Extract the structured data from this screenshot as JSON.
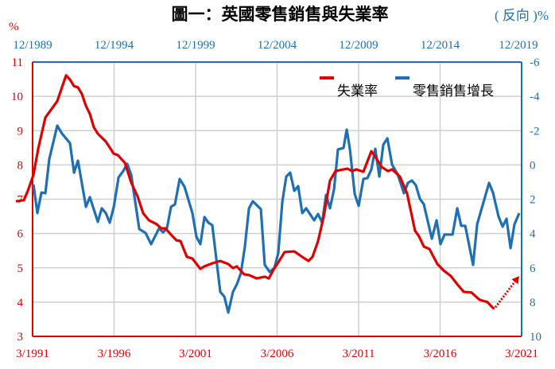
{
  "chart_data": {
    "type": "line",
    "title": "圖一：英國零售銷售與失業率",
    "left_axis": {
      "unit_label": "%",
      "range": [
        3,
        11
      ],
      "ticks": [
        "3",
        "4",
        "5",
        "6",
        "7",
        "8",
        "9",
        "10",
        "11"
      ],
      "color": "#e00000"
    },
    "right_axis": {
      "unit_label": "( 反向 )%",
      "range": [
        -6,
        10
      ],
      "reversed": true,
      "ticks": [
        "-6",
        "-4",
        "-2",
        "0",
        "2",
        "4",
        "6",
        "8",
        "10"
      ],
      "color": "#1f6fb4"
    },
    "bottom_axis": {
      "range": [
        1991.167,
        2021.167
      ],
      "ticks": [
        "3/1991",
        "3/1996",
        "3/2001",
        "3/2006",
        "3/2011",
        "3/2016",
        "3/2021"
      ],
      "color": "#e00000"
    },
    "top_axis": {
      "range": [
        1989.917,
        2019.917
      ],
      "ticks": [
        "12/1989",
        "12/1994",
        "12/1999",
        "12/2004",
        "12/2009",
        "12/2014",
        "12/2019"
      ],
      "color": "#1f6fb4"
    },
    "grid": true,
    "legend_position": "top-right",
    "series": [
      {
        "name": "失業率",
        "color": "#e00000",
        "axis": "left/bottom",
        "points": [
          [
            1990.14,
            6.94
          ],
          [
            1990.63,
            6.97
          ],
          [
            1990.87,
            7.24
          ],
          [
            1991.22,
            7.71
          ],
          [
            1991.51,
            8.47
          ],
          [
            1991.95,
            9.38
          ],
          [
            1992.68,
            9.86
          ],
          [
            1993.22,
            10.61
          ],
          [
            1993.46,
            10.49
          ],
          [
            1993.7,
            10.3
          ],
          [
            1993.95,
            10.26
          ],
          [
            1994.19,
            10.07
          ],
          [
            1994.44,
            9.72
          ],
          [
            1994.68,
            9.49
          ],
          [
            1994.92,
            9.1
          ],
          [
            1995.17,
            8.91
          ],
          [
            1995.66,
            8.68
          ],
          [
            1996.14,
            8.33
          ],
          [
            1996.39,
            8.29
          ],
          [
            1996.83,
            8.06
          ],
          [
            1997.22,
            7.48
          ],
          [
            1997.61,
            7.08
          ],
          [
            1997.95,
            6.59
          ],
          [
            1998.29,
            6.39
          ],
          [
            1998.78,
            6.27
          ],
          [
            1999.07,
            6.15
          ],
          [
            1999.31,
            6.15
          ],
          [
            1999.75,
            5.92
          ],
          [
            2000.0,
            5.8
          ],
          [
            2000.24,
            5.78
          ],
          [
            2000.63,
            5.32
          ],
          [
            2000.97,
            5.27
          ],
          [
            2001.46,
            4.97
          ],
          [
            2001.7,
            5.04
          ],
          [
            2002.19,
            5.13
          ],
          [
            2002.68,
            5.2
          ],
          [
            2003.17,
            5.11
          ],
          [
            2003.46,
            4.99
          ],
          [
            2003.7,
            5.04
          ],
          [
            2004.14,
            4.81
          ],
          [
            2004.44,
            4.79
          ],
          [
            2004.92,
            4.69
          ],
          [
            2005.41,
            4.74
          ],
          [
            2005.66,
            4.69
          ],
          [
            2006.0,
            4.99
          ],
          [
            2006.24,
            5.16
          ],
          [
            2006.63,
            5.46
          ],
          [
            2007.22,
            5.48
          ],
          [
            2007.7,
            5.32
          ],
          [
            2008.09,
            5.2
          ],
          [
            2008.34,
            5.32
          ],
          [
            2008.68,
            5.78
          ],
          [
            2009.02,
            6.48
          ],
          [
            2009.41,
            7.54
          ],
          [
            2009.75,
            7.82
          ],
          [
            2010.04,
            7.85
          ],
          [
            2010.48,
            7.89
          ],
          [
            2010.78,
            7.82
          ],
          [
            2011.02,
            7.87
          ],
          [
            2011.46,
            7.8
          ],
          [
            2011.95,
            8.4
          ],
          [
            2012.19,
            8.24
          ],
          [
            2012.58,
            7.94
          ],
          [
            2012.97,
            7.82
          ],
          [
            2013.22,
            7.87
          ],
          [
            2013.7,
            7.66
          ],
          [
            2014.14,
            7.17
          ],
          [
            2014.63,
            6.08
          ],
          [
            2014.87,
            5.92
          ],
          [
            2015.17,
            5.62
          ],
          [
            2015.51,
            5.55
          ],
          [
            2016.0,
            5.11
          ],
          [
            2016.39,
            4.92
          ],
          [
            2016.83,
            4.76
          ],
          [
            2017.12,
            4.58
          ],
          [
            2017.61,
            4.3
          ],
          [
            2018.09,
            4.28
          ],
          [
            2018.58,
            4.07
          ],
          [
            2019.07,
            4.0
          ],
          [
            2019.41,
            3.83
          ],
          [
            2019.51,
            3.81
          ]
        ],
        "projection_arrow": [
          [
            2019.56,
            3.85
          ],
          [
            2021.02,
            4.76
          ]
        ]
      },
      {
        "name": "零售銷售增長",
        "color": "#1f6fb4",
        "axis": "right/top",
        "points": [
          [
            1989.97,
            1.14
          ],
          [
            1990.21,
            2.81
          ],
          [
            1990.46,
            1.61
          ],
          [
            1990.7,
            1.65
          ],
          [
            1990.94,
            -0.34
          ],
          [
            1991.43,
            -2.29
          ],
          [
            1991.72,
            -1.83
          ],
          [
            1992.21,
            -1.27
          ],
          [
            1992.46,
            0.45
          ],
          [
            1992.7,
            -0.25
          ],
          [
            1993.19,
            2.44
          ],
          [
            1993.43,
            1.88
          ],
          [
            1993.92,
            3.32
          ],
          [
            1994.16,
            2.53
          ],
          [
            1994.41,
            2.81
          ],
          [
            1994.65,
            3.37
          ],
          [
            1994.9,
            2.44
          ],
          [
            1995.19,
            0.73
          ],
          [
            1995.48,
            0.35
          ],
          [
            1995.72,
            -0.06
          ],
          [
            1995.97,
            0.59
          ],
          [
            1996.46,
            3.74
          ],
          [
            1996.85,
            3.97
          ],
          [
            1997.19,
            4.62
          ],
          [
            1997.68,
            3.69
          ],
          [
            1997.92,
            3.93
          ],
          [
            1998.16,
            3.69
          ],
          [
            1998.41,
            2.44
          ],
          [
            1998.65,
            2.3
          ],
          [
            1998.94,
            0.82
          ],
          [
            1999.24,
            1.28
          ],
          [
            1999.72,
            2.81
          ],
          [
            1999.97,
            4.2
          ],
          [
            2000.21,
            4.62
          ],
          [
            2000.46,
            3.04
          ],
          [
            2000.7,
            3.37
          ],
          [
            2000.94,
            3.51
          ],
          [
            2001.43,
            7.4
          ],
          [
            2001.68,
            7.68
          ],
          [
            2001.92,
            8.61
          ],
          [
            2002.21,
            7.4
          ],
          [
            2002.46,
            6.94
          ],
          [
            2002.7,
            6.29
          ],
          [
            2002.94,
            4.76
          ],
          [
            2003.19,
            2.53
          ],
          [
            2003.43,
            2.12
          ],
          [
            2003.92,
            2.58
          ],
          [
            2004.16,
            5.83
          ],
          [
            2004.46,
            6.24
          ],
          [
            2004.75,
            6.01
          ],
          [
            2004.99,
            5.13
          ],
          [
            2005.24,
            2.12
          ],
          [
            2005.48,
            0.68
          ],
          [
            2005.72,
            0.45
          ],
          [
            2005.97,
            1.51
          ],
          [
            2006.21,
            1.24
          ],
          [
            2006.46,
            2.81
          ],
          [
            2006.7,
            2.53
          ],
          [
            2007.19,
            3.23
          ],
          [
            2007.43,
            2.86
          ],
          [
            2007.68,
            3.37
          ],
          [
            2007.92,
            1.75
          ],
          [
            2008.16,
            2.53
          ],
          [
            2008.41,
            1.42
          ],
          [
            2008.65,
            -0.9
          ],
          [
            2008.99,
            -0.99
          ],
          [
            2009.19,
            -2.06
          ],
          [
            2009.38,
            -0.94
          ],
          [
            2009.68,
            1.7
          ],
          [
            2009.92,
            2.39
          ],
          [
            2010.21,
            0.82
          ],
          [
            2010.46,
            0.77
          ],
          [
            2010.7,
            0.26
          ],
          [
            2010.94,
            -0.94
          ],
          [
            2011.19,
            0.68
          ],
          [
            2011.43,
            -1.18
          ],
          [
            2011.68,
            -1.55
          ],
          [
            2011.97,
            -0.02
          ],
          [
            2012.31,
            0.54
          ],
          [
            2012.7,
            1.65
          ],
          [
            2012.94,
            1.05
          ],
          [
            2013.19,
            0.91
          ],
          [
            2013.43,
            1.19
          ],
          [
            2013.68,
            1.98
          ],
          [
            2013.92,
            2.3
          ],
          [
            2014.41,
            4.3
          ],
          [
            2014.7,
            3.23
          ],
          [
            2014.94,
            4.62
          ],
          [
            2015.19,
            4.06
          ],
          [
            2015.68,
            4.06
          ],
          [
            2015.97,
            2.53
          ],
          [
            2016.21,
            3.55
          ],
          [
            2016.46,
            3.55
          ],
          [
            2016.94,
            5.83
          ],
          [
            2017.19,
            3.46
          ],
          [
            2017.92,
            1.05
          ],
          [
            2018.16,
            1.61
          ],
          [
            2018.5,
            3.0
          ],
          [
            2018.75,
            3.6
          ],
          [
            2018.99,
            3.14
          ],
          [
            2019.24,
            4.85
          ],
          [
            2019.48,
            3.46
          ],
          [
            2019.77,
            2.81
          ]
        ]
      }
    ]
  }
}
